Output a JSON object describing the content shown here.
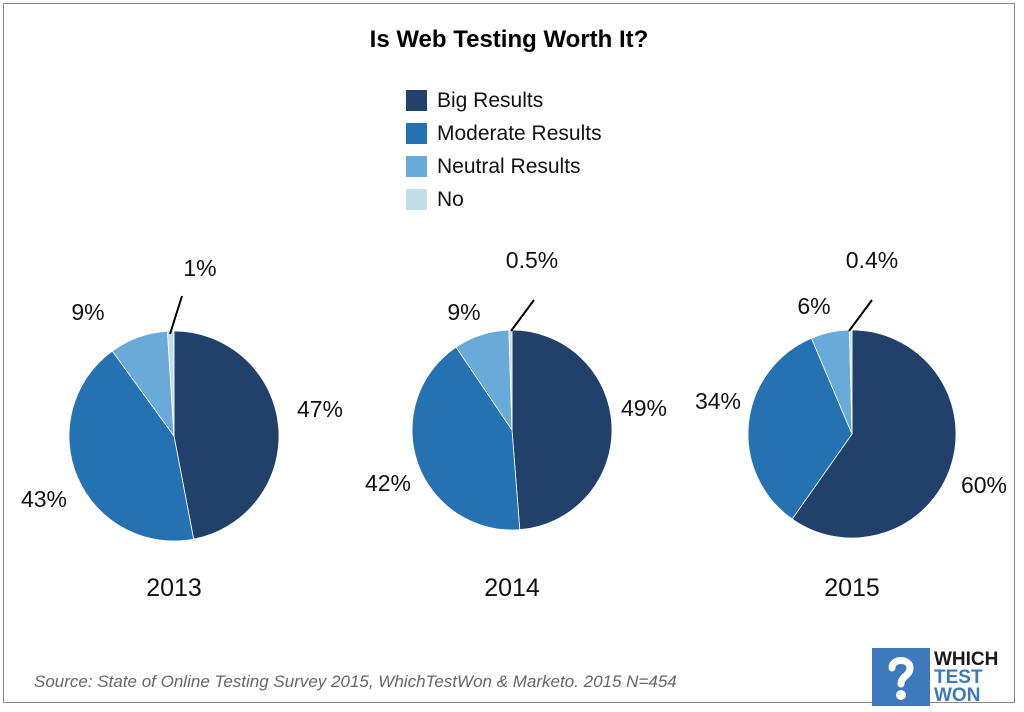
{
  "title": "Is Web Testing Worth It?",
  "legend": [
    {
      "label": "Big Results",
      "color": "#22416a"
    },
    {
      "label": "Moderate Results",
      "color": "#2572b3"
    },
    {
      "label": "Neutral Results",
      "color": "#6aaad8"
    },
    {
      "label": "No",
      "color": "#c3dde8"
    }
  ],
  "chart_data": [
    {
      "type": "pie",
      "title": "2013",
      "labels": [
        "Big Results",
        "Moderate Results",
        "Neutral Results",
        "No"
      ],
      "values": [
        47,
        43,
        9,
        1
      ],
      "value_labels": [
        "47%",
        "43%",
        "9%",
        "1%"
      ]
    },
    {
      "type": "pie",
      "title": "2014",
      "labels": [
        "Big Results",
        "Moderate Results",
        "Neutral Results",
        "No"
      ],
      "values": [
        49,
        42,
        9,
        0.5
      ],
      "value_labels": [
        "49%",
        "42%",
        "9%",
        "0.5%"
      ]
    },
    {
      "type": "pie",
      "title": "2015",
      "labels": [
        "Big Results",
        "Moderate Results",
        "Neutral Results",
        "No"
      ],
      "values": [
        60,
        34,
        6,
        0.4
      ],
      "value_labels": [
        "60%",
        "34%",
        "6%",
        "0.4%"
      ]
    }
  ],
  "source": "Source: State of Online Testing Survey 2015, WhichTestWon & Marketo.   2015 N=454",
  "logo": {
    "line1": "WHICH",
    "line2": "TEST",
    "line3": "WON"
  }
}
